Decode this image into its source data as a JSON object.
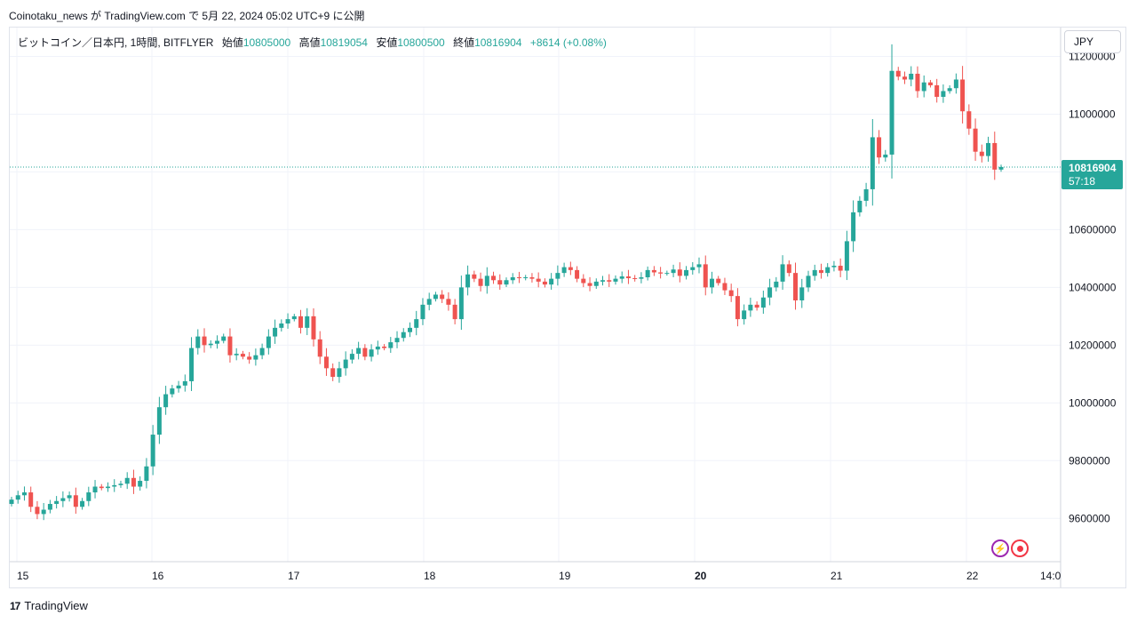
{
  "header": {
    "attribution": "Coinotaku_news が TradingView.com で 5月 22, 2024 05:02 UTC+9 に公開"
  },
  "legend": {
    "symbol": "ビットコイン／日本円, 1時間, BITFLYER",
    "open_label": "始値",
    "open": "10805000",
    "high_label": "高値",
    "high": "10819054",
    "low_label": "安値",
    "low": "10800500",
    "close_label": "終値",
    "close": "10816904",
    "change": "+8614 (+0.08%)"
  },
  "currency_button": "JPY",
  "price_badge": {
    "price": "10816904",
    "countdown": "57:18"
  },
  "footer": {
    "logo_mark": "17",
    "brand": "TradingView"
  },
  "icons": {
    "flash": "flash-icon",
    "record": "record-icon"
  },
  "colors": {
    "up": "#26a69a",
    "down": "#ef5350",
    "grid": "#f0f3fa",
    "badge": "#26a69a"
  },
  "chart_data": {
    "type": "candlestick",
    "title": "",
    "x_ticks": [
      "15",
      "16",
      "17",
      "18",
      "19",
      "20",
      "21",
      "22",
      "14:0"
    ],
    "y_ticks": [
      "11200000",
      "11000000",
      "10800000",
      "10600000",
      "10400000",
      "10200000",
      "10000000",
      "9800000",
      "9600000"
    ],
    "ylim": [
      9450000,
      11300000
    ],
    "current_price": 10816904,
    "close_series": [
      9665000,
      9680000,
      9690000,
      9640000,
      9615000,
      9630000,
      9650000,
      9660000,
      9670000,
      9680000,
      9640000,
      9660000,
      9690000,
      9710000,
      9705000,
      9710000,
      9715000,
      9720000,
      9740000,
      9710000,
      9730000,
      9780000,
      9890000,
      9985000,
      10030000,
      10050000,
      10060000,
      10075000,
      10190000,
      10230000,
      10200000,
      10205000,
      10215000,
      10230000,
      10165000,
      10170000,
      10160000,
      10150000,
      10165000,
      10190000,
      10230000,
      10260000,
      10275000,
      10290000,
      10300000,
      10260000,
      10300000,
      10220000,
      10160000,
      10120000,
      10090000,
      10120000,
      10150000,
      10170000,
      10190000,
      10160000,
      10185000,
      10195000,
      10190000,
      10210000,
      10225000,
      10245000,
      10260000,
      10290000,
      10340000,
      10360000,
      10375000,
      10360000,
      10340000,
      10290000,
      10400000,
      10445000,
      10430000,
      10405000,
      10440000,
      10425000,
      10410000,
      10425000,
      10435000,
      10432000,
      10435000,
      10430000,
      10420000,
      10410000,
      10430000,
      10450000,
      10470000,
      10460000,
      10430000,
      10415000,
      10405000,
      10420000,
      10425000,
      10420000,
      10430000,
      10438000,
      10432000,
      10430000,
      10435000,
      10460000,
      10452000,
      10448000,
      10450000,
      10462000,
      10440000,
      10460000,
      10470000,
      10480000,
      10400000,
      10430000,
      10415000,
      10390000,
      10370000,
      10290000,
      10320000,
      10340000,
      10330000,
      10365000,
      10400000,
      10420000,
      10480000,
      10450000,
      10355000,
      10400000,
      10440000,
      10460000,
      10450000,
      10470000,
      10475000,
      10458000,
      10560000,
      10660000,
      10700000,
      10740000,
      10920000,
      10850000,
      10860000,
      11150000,
      11130000,
      11120000,
      11140000,
      11080000,
      11110000,
      11100000,
      11060000,
      11080000,
      11090000,
      11120000,
      11010000,
      10950000,
      10870000,
      10855000,
      10900000,
      10808000,
      10816904
    ]
  }
}
